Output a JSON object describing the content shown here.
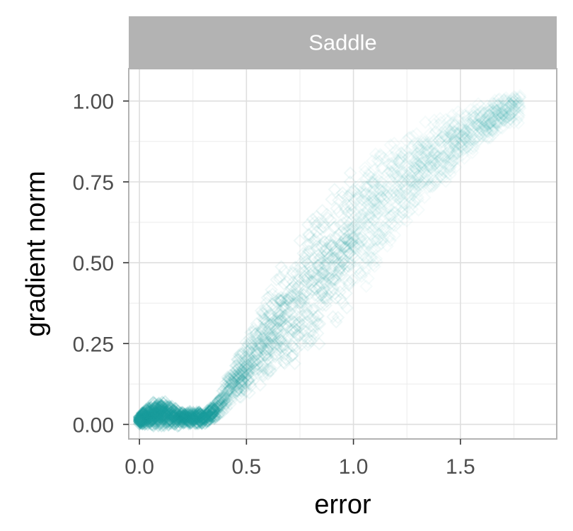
{
  "chart_data": {
    "type": "scatter",
    "facet": "Saddle",
    "xlabel": "error",
    "ylabel": "gradient norm",
    "xlim": [
      -0.05,
      1.95
    ],
    "ylim": [
      -0.045,
      1.1
    ],
    "x_ticks": [
      0.0,
      0.5,
      1.0,
      1.5
    ],
    "x_tick_labels": [
      "0.0",
      "0.5",
      "1.0",
      "1.5"
    ],
    "y_ticks": [
      0.0,
      0.25,
      0.5,
      0.75,
      1.0
    ],
    "y_tick_labels": [
      "0.00",
      "0.25",
      "0.50",
      "0.75",
      "1.00"
    ],
    "grid": true,
    "point_shape": "open-diamond",
    "point_color": "#1a9c9c",
    "point_alpha": 0.06,
    "series": [
      {
        "band": [
          {
            "x": 0.0,
            "ylow": 0.0,
            "yhigh": 0.03
          },
          {
            "x": 0.05,
            "ylow": -0.01,
            "yhigh": 0.07
          },
          {
            "x": 0.1,
            "ylow": -0.01,
            "yhigh": 0.08
          },
          {
            "x": 0.15,
            "ylow": -0.01,
            "yhigh": 0.06
          },
          {
            "x": 0.2,
            "ylow": -0.005,
            "yhigh": 0.045
          },
          {
            "x": 0.3,
            "ylow": 0.0,
            "yhigh": 0.04
          },
          {
            "x": 0.35,
            "ylow": 0.01,
            "yhigh": 0.06
          },
          {
            "x": 0.4,
            "ylow": 0.04,
            "yhigh": 0.14
          },
          {
            "x": 0.5,
            "ylow": 0.08,
            "yhigh": 0.28
          },
          {
            "x": 0.6,
            "ylow": 0.12,
            "yhigh": 0.42
          },
          {
            "x": 0.7,
            "ylow": 0.16,
            "yhigh": 0.54
          },
          {
            "x": 0.8,
            "ylow": 0.22,
            "yhigh": 0.65
          },
          {
            "x": 0.9,
            "ylow": 0.28,
            "yhigh": 0.74
          },
          {
            "x": 1.0,
            "ylow": 0.36,
            "yhigh": 0.8
          },
          {
            "x": 1.1,
            "ylow": 0.46,
            "yhigh": 0.85
          },
          {
            "x": 1.2,
            "ylow": 0.56,
            "yhigh": 0.9
          },
          {
            "x": 1.3,
            "ylow": 0.65,
            "yhigh": 0.93
          },
          {
            "x": 1.4,
            "ylow": 0.72,
            "yhigh": 0.96
          },
          {
            "x": 1.5,
            "ylow": 0.8,
            "yhigh": 0.98
          },
          {
            "x": 1.6,
            "ylow": 0.86,
            "yhigh": 1.0
          },
          {
            "x": 1.7,
            "ylow": 0.9,
            "yhigh": 1.02
          },
          {
            "x": 1.78,
            "ylow": 0.93,
            "yhigh": 1.03
          }
        ]
      }
    ]
  }
}
